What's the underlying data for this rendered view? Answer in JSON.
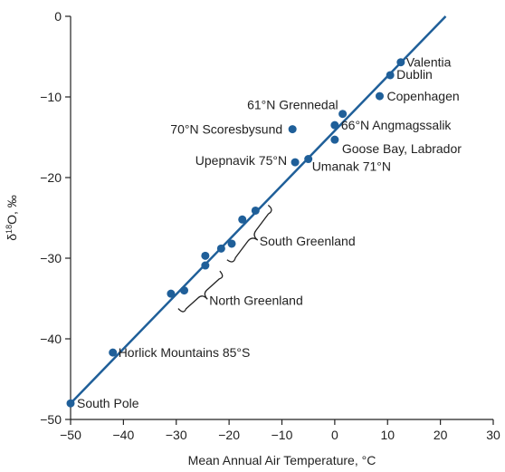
{
  "chart_data": {
    "type": "scatter",
    "title": "",
    "xlabel": "Mean Annual Air Temperature, °C",
    "ylabel_parts": {
      "prefix": "δ",
      "sup": "18",
      "suffix": "O, ‰"
    },
    "xlim": [
      -50,
      30
    ],
    "ylim": [
      -50,
      0
    ],
    "xticks": [
      -50,
      -40,
      -30,
      -20,
      -10,
      0,
      10,
      20,
      30
    ],
    "yticks": [
      0,
      -10,
      -20,
      -30,
      -40,
      -50
    ],
    "xtick_labels": [
      "−50",
      "−40",
      "−30",
      "−20",
      "−10",
      "0",
      "10",
      "20",
      "30"
    ],
    "ytick_labels": [
      "0",
      "−10",
      "−20",
      "−30",
      "−40",
      "−50"
    ],
    "grid": false,
    "line": {
      "x": [
        -50,
        21
      ],
      "y": [
        -48.0,
        0.0
      ]
    },
    "points": [
      {
        "label": "Valentia",
        "x": 12.5,
        "y": -5.7
      },
      {
        "label": "Dublin",
        "x": 10.5,
        "y": -7.3
      },
      {
        "label": "Copenhagen",
        "x": 8.5,
        "y": -9.9
      },
      {
        "label": "61°N Grennedal",
        "x": 1.5,
        "y": -12.1
      },
      {
        "label": "70°N Scoresbysund",
        "x": -8.0,
        "y": -14.0
      },
      {
        "label": "66°N Angmagssalik",
        "x": 0.0,
        "y": -13.5
      },
      {
        "label": "Goose Bay, Labrador",
        "x": 0.0,
        "y": -15.3
      },
      {
        "label": "Upepnavik 75°N",
        "x": -7.5,
        "y": -18.1
      },
      {
        "label": "Umanak 71°N",
        "x": -5.0,
        "y": -17.7
      },
      {
        "label": "",
        "x": -15.0,
        "y": -24.1
      },
      {
        "label": "",
        "x": -17.5,
        "y": -25.2
      },
      {
        "label": "",
        "x": -19.5,
        "y": -28.2
      },
      {
        "label": "",
        "x": -21.5,
        "y": -28.8
      },
      {
        "label": "",
        "x": -24.5,
        "y": -29.7
      },
      {
        "label": "",
        "x": -24.5,
        "y": -30.9
      },
      {
        "label": "",
        "x": -28.5,
        "y": -34.0
      },
      {
        "label": "",
        "x": -31.0,
        "y": -34.4
      },
      {
        "label": "Horlick Mountains 85°S",
        "x": -42.0,
        "y": -41.7
      },
      {
        "label": "South Pole",
        "x": -50.0,
        "y": -48.0
      }
    ],
    "annotations": [
      {
        "label": "South Greenland",
        "x_range": [
          -24.5,
          -15.0
        ]
      },
      {
        "label": "North Greenland",
        "x_range": [
          -31.0,
          -24.5
        ]
      }
    ],
    "colors": {
      "series": "#1f5f99",
      "text": "#222222",
      "axis": "#222222"
    }
  }
}
